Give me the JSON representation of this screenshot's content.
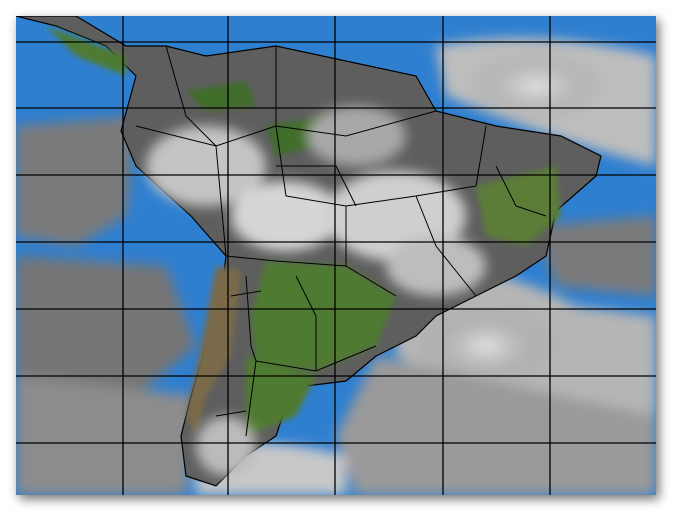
{
  "map": {
    "kind": "satellite-infrared-composite",
    "region": "South America",
    "colors": {
      "ocean": "#2f7fd0",
      "cloud_dark": "#6a6a6a",
      "cloud_light": "#d8d8d8",
      "land": "#5a5a5a",
      "vegetation": "#4f7a32",
      "borders": "#000000",
      "grid": "#000000"
    },
    "grid_columns": 6,
    "grid_rows": 7
  }
}
